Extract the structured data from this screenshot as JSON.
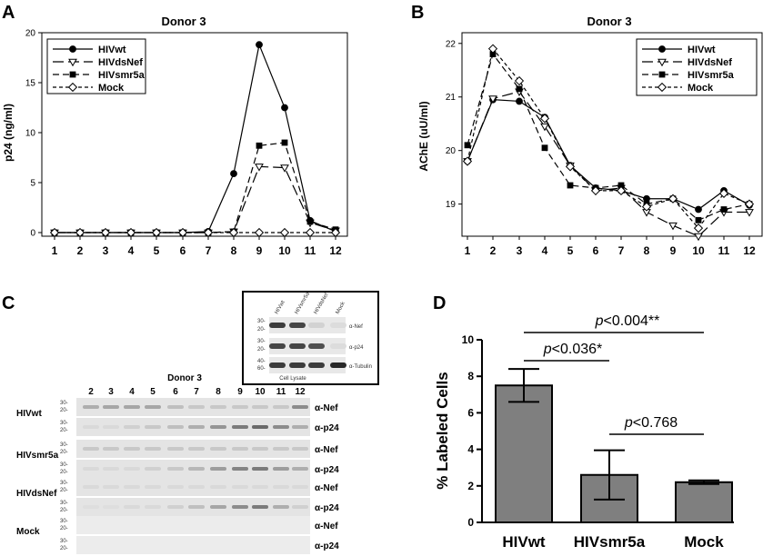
{
  "chart_data": [
    {
      "panel": "A",
      "type": "line",
      "title": "Donor 3",
      "xlabel": "",
      "ylabel": "p24 (ng/ml)",
      "x": [
        1,
        2,
        3,
        4,
        5,
        6,
        7,
        8,
        9,
        10,
        11,
        12
      ],
      "ylim": [
        0,
        20
      ],
      "yticks": [
        0,
        5,
        10,
        15,
        20
      ],
      "legend_position": "top-left",
      "series": [
        {
          "name": "HIVwt",
          "style": "solid",
          "marker": "filled-circle",
          "values": [
            0,
            0,
            0,
            0,
            0,
            0,
            0.1,
            5.9,
            18.8,
            12.5,
            1.2,
            0.1
          ]
        },
        {
          "name": "HIVdsNef",
          "style": "long-dash",
          "marker": "open-triangle-down",
          "values": [
            0,
            0,
            0,
            0,
            0,
            0,
            0,
            0.1,
            6.6,
            6.5,
            1.0,
            0.2
          ]
        },
        {
          "name": "HIVsmr5a",
          "style": "dash",
          "marker": "filled-square",
          "values": [
            0,
            0,
            0,
            0,
            0,
            0,
            0,
            0.1,
            8.7,
            9.0,
            1.1,
            0.3
          ]
        },
        {
          "name": "Mock",
          "style": "short-dash",
          "marker": "open-diamond",
          "values": [
            0,
            0,
            0,
            0,
            0,
            0,
            0,
            0,
            0,
            0,
            0,
            0
          ]
        }
      ]
    },
    {
      "panel": "B",
      "type": "line",
      "title": "Donor 3",
      "xlabel": "",
      "ylabel": "AChE (uU/ml)",
      "x": [
        1,
        2,
        3,
        4,
        5,
        6,
        7,
        8,
        9,
        10,
        11,
        12
      ],
      "ylim": [
        18.4,
        22.2
      ],
      "yticks": [
        19,
        20,
        21,
        22
      ],
      "legend_position": "top-right",
      "series": [
        {
          "name": "HIVwt",
          "style": "solid",
          "marker": "filled-circle",
          "values": [
            19.8,
            20.95,
            20.92,
            20.62,
            19.72,
            19.3,
            19.25,
            19.1,
            19.1,
            18.9,
            19.25,
            18.98
          ]
        },
        {
          "name": "HIVdsNef",
          "style": "long-dash",
          "marker": "open-triangle-down",
          "values": [
            19.8,
            20.97,
            21.1,
            20.45,
            19.72,
            19.25,
            19.3,
            18.85,
            18.6,
            18.4,
            18.85,
            18.85
          ]
        },
        {
          "name": "HIVsmr5a",
          "style": "dash",
          "marker": "filled-square",
          "values": [
            20.1,
            21.8,
            21.15,
            20.05,
            19.35,
            19.3,
            19.35,
            19.0,
            19.1,
            18.7,
            18.9,
            19.0
          ]
        },
        {
          "name": "Mock",
          "style": "short-dash",
          "marker": "open-diamond",
          "values": [
            19.8,
            21.9,
            21.3,
            20.6,
            19.7,
            19.25,
            19.25,
            18.95,
            19.1,
            18.55,
            19.2,
            19.0
          ]
        }
      ]
    },
    {
      "panel": "D",
      "type": "bar",
      "title": "",
      "xlabel": "",
      "ylabel": "% Labeled Cells",
      "categories": [
        "HIVwt",
        "HIVsmr5a",
        "Mock"
      ],
      "values": [
        7.5,
        2.6,
        2.2
      ],
      "errors": [
        0.9,
        1.35,
        0.1
      ],
      "ylim": [
        0,
        10
      ],
      "yticks": [
        0,
        2,
        4,
        6,
        8,
        10
      ],
      "annotations": [
        {
          "label": "p<0.004**",
          "from": "HIVwt",
          "to": "Mock"
        },
        {
          "label": "p<0.036*",
          "from": "HIVwt",
          "to": "HIVsmr5a"
        },
        {
          "label": "p<0.768",
          "from": "HIVsmr5a",
          "to": "Mock"
        }
      ]
    }
  ],
  "panel_c": {
    "letter": "C",
    "title": "Donor 3",
    "lanes": [
      "2",
      "3",
      "4",
      "5",
      "6",
      "7",
      "8",
      "9",
      "10",
      "11",
      "12"
    ],
    "rows": [
      {
        "name": "HIVwt",
        "bands": [
          "α-Nef",
          "α-p24"
        ]
      },
      {
        "name": "HIVsmr5a",
        "bands": [
          "α-Nef",
          "α-p24"
        ]
      },
      {
        "name": "HIVdsNef",
        "bands": [
          "α-Nef",
          "α-p24"
        ]
      },
      {
        "name": "Mock",
        "bands": [
          "α-Nef",
          "α-p24"
        ]
      }
    ],
    "mw_markers": [
      "30-",
      "20-"
    ],
    "inset": {
      "lanes": [
        "HIVwt",
        "HIVsmr5a",
        "HIVdsNef",
        "Mock"
      ],
      "bands": [
        "α-Nef",
        "α-p24",
        "α-Tubulin"
      ],
      "caption": "Cell Lysate",
      "mw_markers": [
        "30-",
        "20-",
        "40-",
        "60-"
      ]
    }
  },
  "panel_letters": [
    "A",
    "B",
    "C",
    "D"
  ]
}
